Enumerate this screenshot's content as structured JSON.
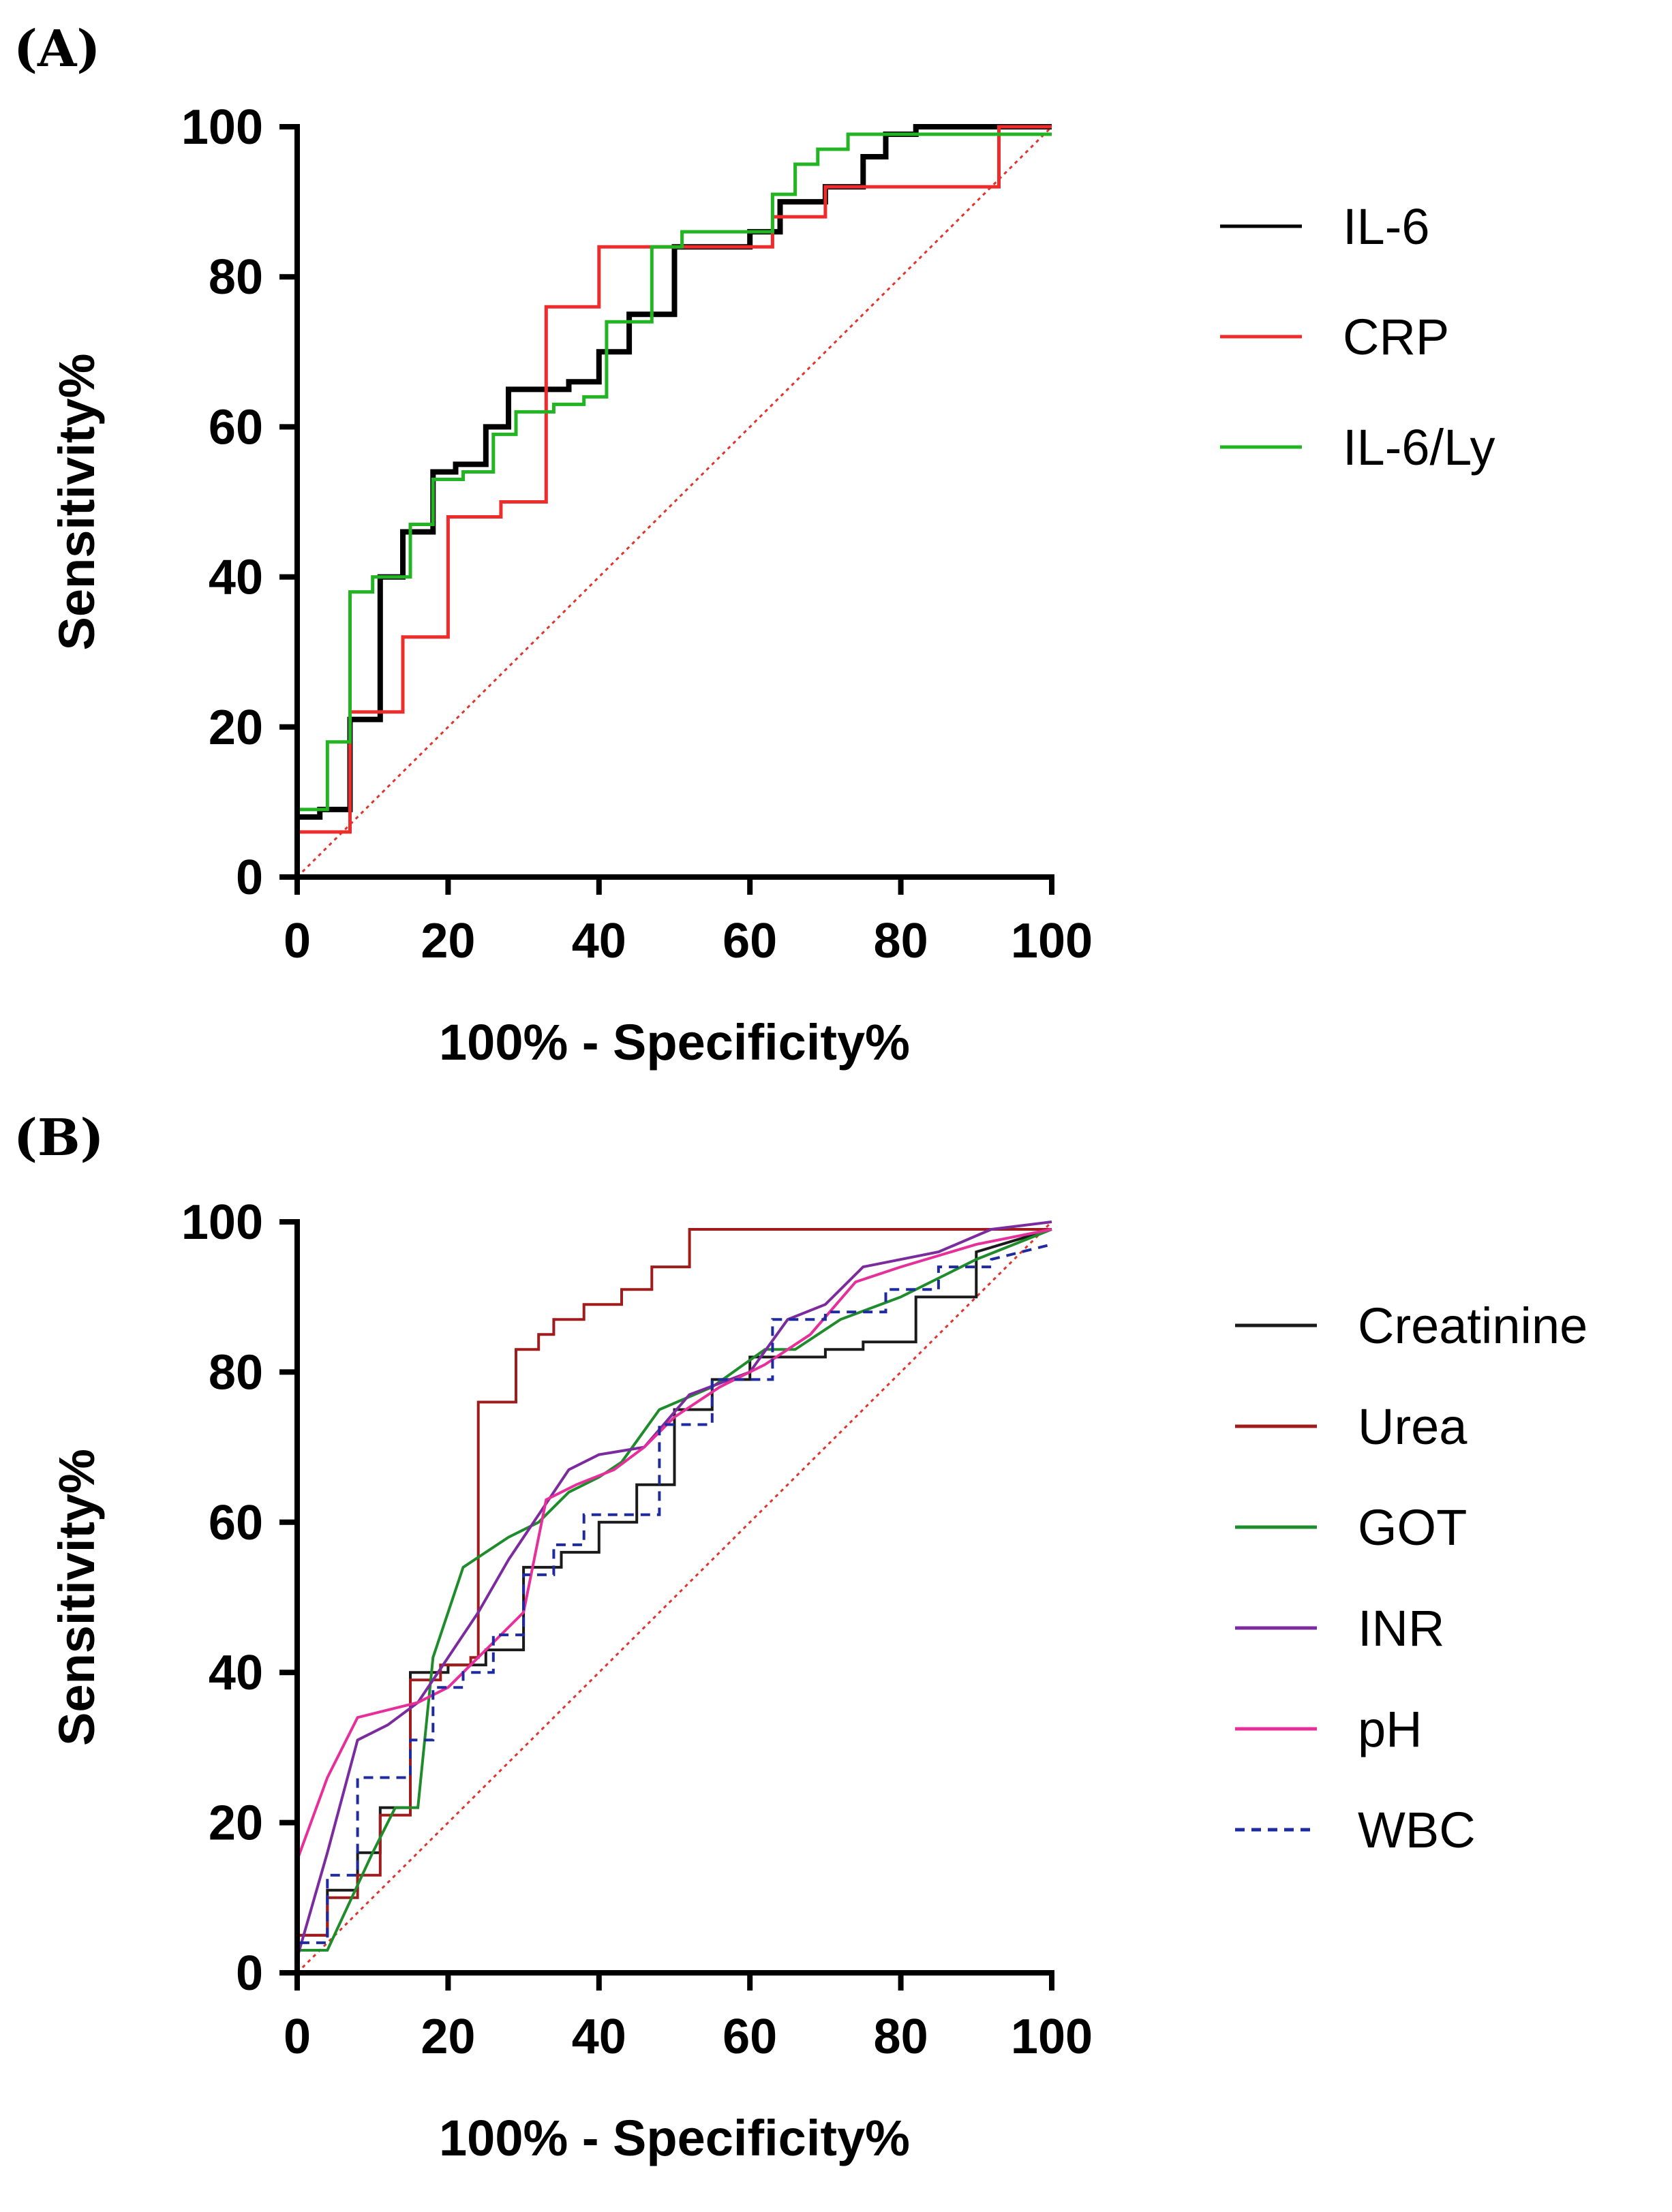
{
  "figure": {
    "panel_labels": [
      "(A)",
      "(B)"
    ]
  },
  "chart_data": [
    {
      "type": "line",
      "panel": "(A)",
      "xlabel": "100% - Specificity%",
      "ylabel": "Sensitivity%",
      "xlim": [
        0,
        100
      ],
      "ylim": [
        0,
        100
      ],
      "xticks": [
        0,
        20,
        40,
        60,
        80,
        100
      ],
      "yticks": [
        0,
        20,
        40,
        60,
        80,
        100
      ],
      "legend_position": "right",
      "reference_line": {
        "x": [
          0,
          100
        ],
        "y": [
          0,
          100
        ],
        "color": "#e0342c",
        "style": "dotted"
      },
      "series": [
        {
          "name": "IL-6",
          "color": "#000000",
          "width": 8,
          "style": "solid",
          "x": [
            0,
            0,
            3,
            3,
            7,
            7,
            11,
            11,
            14,
            14,
            18,
            18,
            21,
            21,
            25,
            25,
            28,
            28,
            33,
            33,
            36,
            36,
            40,
            40,
            44,
            44,
            50,
            50,
            60,
            60,
            64,
            64,
            70,
            70,
            75,
            75,
            78,
            78,
            82,
            82,
            100
          ],
          "y": [
            0,
            8,
            8,
            9,
            9,
            21,
            21,
            40,
            40,
            46,
            46,
            54,
            54,
            55,
            55,
            60,
            60,
            65,
            65,
            65,
            65,
            66,
            66,
            70,
            70,
            75,
            75,
            84,
            84,
            86,
            86,
            90,
            90,
            92,
            92,
            96,
            96,
            99,
            99,
            100,
            100
          ]
        },
        {
          "name": "CRP",
          "color": "#ee2c2c",
          "width": 5,
          "style": "solid",
          "x": [
            0,
            0,
            7,
            7,
            14,
            14,
            20,
            20,
            27,
            27,
            33,
            33,
            40,
            40,
            63,
            63,
            70,
            70,
            73,
            73,
            93,
            93,
            100
          ],
          "y": [
            0,
            6,
            6,
            22,
            22,
            32,
            32,
            48,
            48,
            50,
            50,
            76,
            76,
            84,
            84,
            88,
            88,
            92,
            92,
            92,
            92,
            100,
            100
          ]
        },
        {
          "name": "IL-6/Ly",
          "color": "#22b422",
          "width": 5,
          "style": "solid",
          "x": [
            0,
            0,
            4,
            4,
            7,
            7,
            10,
            10,
            15,
            15,
            18,
            18,
            22,
            22,
            26,
            26,
            29,
            29,
            34,
            34,
            38,
            38,
            41,
            41,
            47,
            47,
            51,
            51,
            63,
            63,
            66,
            66,
            69,
            69,
            73,
            73,
            79,
            79,
            100
          ],
          "y": [
            0,
            9,
            9,
            18,
            18,
            38,
            38,
            40,
            40,
            47,
            47,
            53,
            53,
            54,
            54,
            59,
            59,
            62,
            62,
            63,
            63,
            64,
            64,
            74,
            74,
            84,
            84,
            86,
            86,
            91,
            91,
            95,
            95,
            97,
            97,
            99,
            99,
            99,
            99
          ]
        }
      ]
    },
    {
      "type": "line",
      "panel": "(B)",
      "xlabel": "100% - Specificity%",
      "ylabel": "Sensitivity%",
      "xlim": [
        0,
        100
      ],
      "ylim": [
        0,
        100
      ],
      "xticks": [
        0,
        20,
        40,
        60,
        80,
        100
      ],
      "yticks": [
        0,
        20,
        40,
        60,
        80,
        100
      ],
      "legend_position": "right",
      "reference_line": {
        "x": [
          0,
          100
        ],
        "y": [
          0,
          100
        ],
        "color": "#e0342c",
        "style": "dotted"
      },
      "series": [
        {
          "name": "Creatinine",
          "color": "#1a1a1a",
          "width": 4,
          "style": "solid",
          "x": [
            0,
            0,
            4,
            4,
            8,
            8,
            11,
            11,
            15,
            15,
            20,
            20,
            25,
            25,
            30,
            30,
            35,
            35,
            40,
            40,
            45,
            45,
            50,
            50,
            55,
            55,
            60,
            60,
            70,
            70,
            75,
            75,
            82,
            82,
            90,
            90,
            100
          ],
          "y": [
            0,
            5,
            5,
            11,
            11,
            16,
            16,
            22,
            22,
            40,
            40,
            41,
            41,
            43,
            43,
            54,
            54,
            56,
            56,
            60,
            60,
            65,
            65,
            75,
            75,
            79,
            79,
            82,
            82,
            83,
            83,
            84,
            84,
            90,
            90,
            96,
            99
          ]
        },
        {
          "name": "Urea",
          "color": "#a01c1c",
          "width": 4,
          "style": "solid",
          "x": [
            0,
            0,
            4,
            4,
            8,
            8,
            11,
            11,
            15,
            15,
            19,
            19,
            23,
            23,
            24,
            24,
            27,
            27,
            29,
            29,
            32,
            32,
            34,
            34,
            38,
            38,
            43,
            43,
            47,
            47,
            52,
            52,
            100
          ],
          "y": [
            0,
            5,
            5,
            10,
            10,
            13,
            13,
            21,
            21,
            39,
            39,
            41,
            41,
            42,
            42,
            76,
            76,
            76,
            76,
            83,
            83,
            85,
            85,
            87,
            87,
            89,
            89,
            91,
            91,
            94,
            94,
            99,
            99
          ]
        },
        {
          "name": "GOT",
          "color": "#1e8c2a",
          "width": 4,
          "style": "solid",
          "x": [
            0,
            0,
            4,
            10,
            13,
            16,
            18,
            22,
            28,
            32,
            36,
            40,
            43,
            48,
            55,
            62,
            66,
            72,
            80,
            90,
            100
          ],
          "y": [
            0,
            3,
            3,
            16,
            22,
            22,
            42,
            54,
            58,
            60,
            64,
            66,
            68,
            75,
            78,
            83,
            83,
            87,
            90,
            95,
            99
          ]
        },
        {
          "name": "INR",
          "color": "#7b2b9e",
          "width": 4,
          "style": "solid",
          "x": [
            0,
            0,
            4,
            8,
            12,
            16,
            20,
            24,
            28,
            32,
            36,
            40,
            46,
            52,
            60,
            65,
            70,
            75,
            85,
            92,
            100
          ],
          "y": [
            0,
            2,
            16,
            31,
            33,
            36,
            42,
            48,
            55,
            61,
            67,
            69,
            70,
            77,
            80,
            87,
            89,
            94,
            96,
            99,
            100
          ]
        },
        {
          "name": "pH",
          "color": "#e72f9b",
          "width": 4,
          "style": "solid",
          "x": [
            0,
            0,
            4,
            8,
            12,
            16,
            20,
            25,
            30,
            33,
            37,
            42,
            46,
            50,
            56,
            62,
            68,
            74,
            80,
            90,
            100
          ],
          "y": [
            0,
            15,
            26,
            34,
            35,
            36,
            38,
            43,
            48,
            63,
            65,
            67,
            70,
            74,
            78,
            81,
            85,
            92,
            94,
            97,
            99
          ]
        },
        {
          "name": "WBC",
          "color": "#1e2aa0",
          "width": 4,
          "style": "dashed",
          "x": [
            0,
            0,
            4,
            4,
            8,
            8,
            12,
            12,
            15,
            15,
            18,
            18,
            22,
            22,
            26,
            26,
            30,
            30,
            34,
            34,
            38,
            38,
            44,
            44,
            48,
            48,
            55,
            55,
            63,
            63,
            70,
            70,
            78,
            78,
            85,
            85,
            92,
            92,
            100
          ],
          "y": [
            0,
            4,
            4,
            13,
            13,
            26,
            26,
            26,
            26,
            31,
            31,
            38,
            38,
            40,
            40,
            45,
            45,
            53,
            53,
            57,
            57,
            61,
            61,
            61,
            61,
            73,
            73,
            79,
            79,
            87,
            87,
            88,
            88,
            91,
            91,
            94,
            94,
            95,
            97
          ]
        }
      ]
    }
  ]
}
